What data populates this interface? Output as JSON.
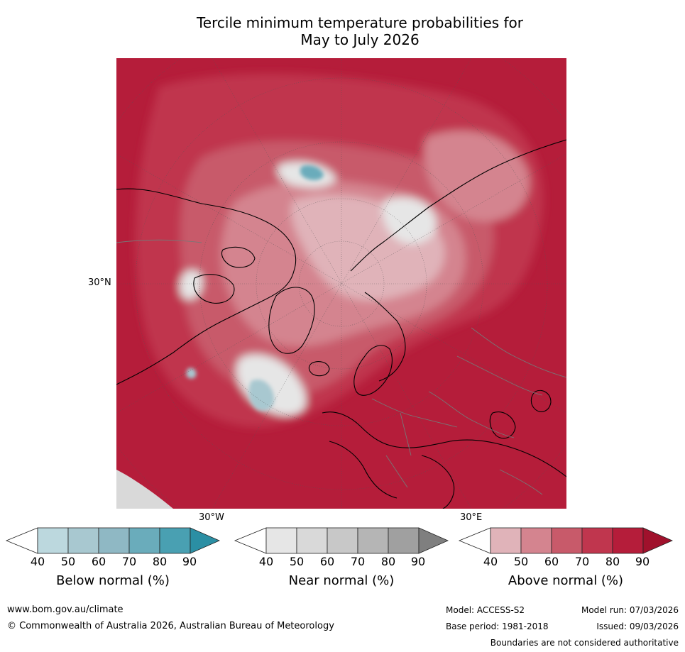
{
  "title": {
    "line1": "Tercile minimum temperature probabilities for",
    "line2": "May to July 2026"
  },
  "map": {
    "lat_label": "30°N",
    "lon_labels": [
      "30°W",
      "30°E"
    ],
    "colors": {
      "above_90": "#b51d3a",
      "above_80": "#c0364e",
      "above_70": "#c85a6a",
      "above_60": "#d4848f",
      "above_50": "#e0b3b9",
      "near": "#e6e6e6",
      "below_50": "#a8c8d0",
      "below_70": "#6aacbb",
      "land_grey": "#d9d9d9"
    }
  },
  "colorbars": [
    {
      "label": "Below normal (%)",
      "ticks": [
        "40",
        "50",
        "60",
        "70",
        "80",
        "90"
      ],
      "colors": [
        "#bcd8de",
        "#a8c8d0",
        "#8fb8c4",
        "#6aacbb",
        "#49a0b2",
        "#2b8fa4"
      ]
    },
    {
      "label": "Near normal (%)",
      "ticks": [
        "40",
        "50",
        "60",
        "70",
        "80",
        "90"
      ],
      "colors": [
        "#e6e6e6",
        "#d9d9d9",
        "#c8c8c8",
        "#b5b5b5",
        "#a0a0a0",
        "#7f7f7f"
      ]
    },
    {
      "label": "Above normal (%)",
      "ticks": [
        "40",
        "50",
        "60",
        "70",
        "80",
        "90"
      ],
      "colors": [
        "#e0b3b9",
        "#d4848f",
        "#c85a6a",
        "#c0364e",
        "#b51d3a",
        "#a0112c"
      ]
    }
  ],
  "footer": {
    "website": "www.bom.gov.au/climate",
    "copyright": "© Commonwealth of Australia 2026, Australian Bureau of Meteorology",
    "model": "Model: ACCESS-S2",
    "base_period": "Base period: 1981-2018",
    "model_run": "Model run: 07/03/2026",
    "issued": "Issued: 09/03/2026",
    "disclaimer": "Boundaries are not considered authoritative"
  }
}
